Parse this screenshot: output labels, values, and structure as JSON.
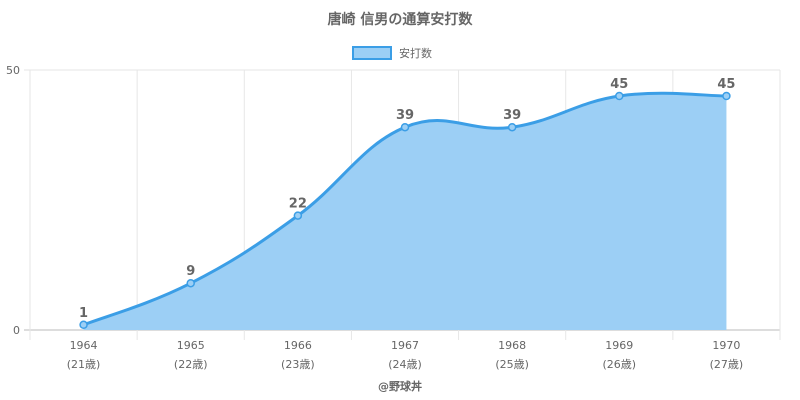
{
  "chart_data": {
    "type": "area",
    "title": "唐崎 信男の通算安打数",
    "legend": {
      "label": "安打数",
      "placement": "top"
    },
    "x": [
      "1964",
      "1965",
      "1966",
      "1967",
      "1968",
      "1969",
      "1970"
    ],
    "x_sub": [
      "(21歳)",
      "(22歳)",
      "(23歳)",
      "(24歳)",
      "(25歳)",
      "(26歳)",
      "(27歳)"
    ],
    "series": [
      {
        "name": "安打数",
        "values": [
          1,
          9,
          22,
          39,
          39,
          45,
          45
        ]
      }
    ],
    "ylim": [
      0,
      50
    ],
    "y_ticks": [
      0,
      50
    ],
    "grid": true,
    "colors": {
      "line": "#3b9ee6",
      "fill": "#9ccff5",
      "grid": "#e6e6e6",
      "axis": "#bbbbbb"
    }
  },
  "credit": "@野球丼"
}
